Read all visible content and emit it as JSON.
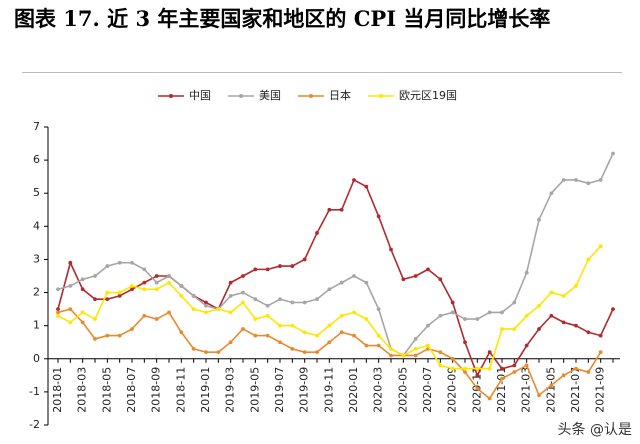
{
  "chart_data": {
    "type": "line",
    "title": "图表 17. 近 3 年主要国家和地区的 CPI 当月同比增长率",
    "watermark": "头条 @认是",
    "categories": [
      "2018-01",
      null,
      "2018-03",
      null,
      "2018-05",
      null,
      "2018-07",
      null,
      "2018-09",
      null,
      "2018-11",
      null,
      "2019-01",
      null,
      "2019-03",
      null,
      "2019-05",
      null,
      "2019-07",
      null,
      "2019-09",
      null,
      "2019-11",
      null,
      "2020-01",
      null,
      "2020-03",
      null,
      "2020-05",
      null,
      "2020-07",
      null,
      "2020-09",
      null,
      "2020-11",
      null,
      "2021-01",
      null,
      "2021-03",
      null,
      "2021-05",
      null,
      "2021-07",
      null,
      "2021-09",
      null
    ],
    "series": [
      {
        "name": "中国",
        "color": "#b22a2e",
        "values": [
          1.5,
          2.9,
          2.1,
          1.8,
          1.8,
          1.9,
          2.1,
          2.3,
          2.5,
          2.5,
          2.2,
          1.9,
          1.7,
          1.5,
          2.3,
          2.5,
          2.7,
          2.7,
          2.8,
          2.8,
          3.0,
          3.8,
          4.5,
          4.5,
          5.4,
          5.2,
          4.3,
          3.3,
          2.4,
          2.5,
          2.7,
          2.4,
          1.7,
          0.5,
          -0.5,
          0.2,
          -0.3,
          -0.2,
          0.4,
          0.9,
          1.3,
          1.1,
          1.0,
          0.8,
          0.7,
          1.5
        ]
      },
      {
        "name": "美国",
        "color": "#a6a6a6",
        "values": [
          2.1,
          2.2,
          2.4,
          2.5,
          2.8,
          2.9,
          2.9,
          2.7,
          2.3,
          2.5,
          2.2,
          1.9,
          1.6,
          1.5,
          1.9,
          2.0,
          1.8,
          1.6,
          1.8,
          1.7,
          1.7,
          1.8,
          2.1,
          2.3,
          2.5,
          2.3,
          1.5,
          0.3,
          0.1,
          0.6,
          1.0,
          1.3,
          1.4,
          1.2,
          1.2,
          1.4,
          1.4,
          1.7,
          2.6,
          4.2,
          5.0,
          5.4,
          5.4,
          5.3,
          5.4,
          6.2
        ]
      },
      {
        "name": "日本",
        "color": "#e88a2e",
        "values": [
          1.4,
          1.5,
          1.1,
          0.6,
          0.7,
          0.7,
          0.9,
          1.3,
          1.2,
          1.4,
          0.8,
          0.3,
          0.2,
          0.2,
          0.5,
          0.9,
          0.7,
          0.7,
          0.5,
          0.3,
          0.2,
          0.2,
          0.5,
          0.8,
          0.7,
          0.4,
          0.4,
          0.1,
          0.1,
          0.1,
          0.3,
          0.2,
          0.0,
          -0.4,
          -0.9,
          -1.2,
          -0.6,
          -0.4,
          -0.2,
          -1.1,
          -0.8,
          -0.5,
          -0.3,
          -0.4,
          0.2,
          null
        ]
      },
      {
        "name": "欧元区19国",
        "color": "#ffe600",
        "values": [
          1.3,
          1.1,
          1.4,
          1.2,
          2.0,
          2.0,
          2.2,
          2.1,
          2.1,
          2.3,
          1.9,
          1.5,
          1.4,
          1.5,
          1.4,
          1.7,
          1.2,
          1.3,
          1.0,
          1.0,
          0.8,
          0.7,
          1.0,
          1.3,
          1.4,
          1.2,
          0.7,
          0.3,
          0.1,
          0.3,
          0.4,
          -0.2,
          -0.3,
          -0.3,
          -0.3,
          -0.3,
          0.9,
          0.9,
          1.3,
          1.6,
          2.0,
          1.9,
          2.2,
          3.0,
          3.4,
          null
        ]
      }
    ],
    "ylim": [
      -2,
      7
    ],
    "yticks": [
      -2,
      -1,
      0,
      1,
      2,
      3,
      4,
      5,
      6,
      7
    ],
    "legend": "top"
  }
}
